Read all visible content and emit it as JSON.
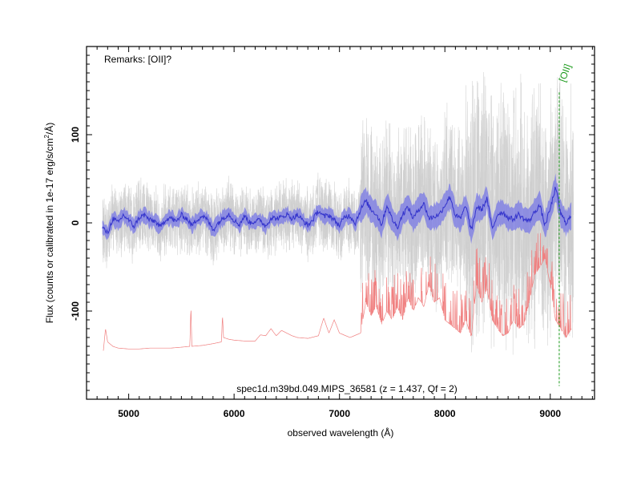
{
  "chart_data": {
    "type": "line",
    "xlabel": "observed wavelength (Å)",
    "ylabel_parts": [
      "Flux (counts or calibrated in 1e-17 erg/s/cm",
      "2",
      "/Å)"
    ],
    "remarks": "Remarks: [OII]?",
    "caption": "spec1d.m39bd.049.MIPS_36581 (z = 1.437, Qf = 2)",
    "xlim": [
      4600,
      9420
    ],
    "ylim": [
      -200,
      200
    ],
    "x_ticks": [
      5000,
      6000,
      7000,
      8000,
      9000
    ],
    "x_tick_labels": [
      "5000",
      "6000",
      "7000",
      "8000",
      "9000"
    ],
    "y_ticks": [
      -100,
      0,
      100
    ],
    "y_tick_labels": [
      "-100",
      "0",
      "100"
    ],
    "line_marker": {
      "label": "[OII]",
      "x": 9085,
      "color": "#1a9a1a"
    },
    "colors": {
      "raw": "#cccccc",
      "smoothed": "#3333cc",
      "error_band": "#7777e6",
      "sky": "#f08080"
    },
    "series": [
      {
        "role": "smoothed-flux",
        "x": [
          4750,
          4800,
          4850,
          4900,
          4950,
          5000,
          5050,
          5100,
          5150,
          5200,
          5250,
          5300,
          5350,
          5400,
          5450,
          5500,
          5550,
          5600,
          5650,
          5700,
          5750,
          5800,
          5850,
          5900,
          5950,
          6000,
          6050,
          6100,
          6150,
          6200,
          6250,
          6300,
          6350,
          6400,
          6450,
          6500,
          6550,
          6600,
          6650,
          6700,
          6750,
          6800,
          6850,
          6900,
          6950,
          7000,
          7050,
          7100,
          7150,
          7200,
          7250,
          7300,
          7350,
          7400,
          7450,
          7500,
          7550,
          7600,
          7650,
          7700,
          7750,
          7800,
          7850,
          7900,
          7950,
          8000,
          8050,
          8100,
          8150,
          8200,
          8250,
          8300,
          8350,
          8400,
          8450,
          8500,
          8550,
          8600,
          8650,
          8700,
          8750,
          8800,
          8850,
          8900,
          8950,
          9000,
          9050,
          9100,
          9150,
          9200
        ],
        "y": [
          -5,
          -12,
          5,
          0,
          9,
          3,
          -4,
          6,
          9,
          3,
          2,
          -5,
          4,
          6,
          1,
          9,
          5,
          -3,
          4,
          8,
          3,
          -8,
          0,
          6,
          10,
          3,
          -2,
          8,
          0,
          2,
          3,
          -4,
          6,
          5,
          6,
          10,
          5,
          9,
          3,
          -3,
          4,
          14,
          7,
          9,
          3,
          -3,
          7,
          8,
          0,
          15,
          25,
          15,
          10,
          -2,
          20,
          4,
          -5,
          10,
          18,
          5,
          15,
          22,
          5,
          7,
          10,
          20,
          30,
          8,
          5,
          20,
          -10,
          18,
          15,
          28,
          -8,
          10,
          12,
          6,
          4,
          10,
          4,
          2,
          12,
          20,
          -3,
          16,
          40,
          10,
          0,
          8
        ]
      },
      {
        "role": "sky-spectrum",
        "x": [
          4760,
          4780,
          4800,
          4850,
          4900,
          5000,
          5100,
          5200,
          5300,
          5400,
          5500,
          5580,
          5590,
          5600,
          5700,
          5800,
          5880,
          5890,
          5900,
          5950,
          6000,
          6100,
          6200,
          6250,
          6300,
          6350,
          6400,
          6450,
          6500,
          6550,
          6600,
          6700,
          6800,
          6850,
          6900,
          6950,
          7000,
          7100,
          7200,
          7250,
          7300,
          7350,
          7400,
          7450,
          7500,
          7550,
          7600,
          7650,
          7700,
          7750,
          7800,
          7850,
          7900,
          7950,
          8000,
          8050,
          8100,
          8150,
          8200,
          8250,
          8300,
          8350,
          8400,
          8450,
          8500,
          8550,
          8600,
          8650,
          8700,
          8750,
          8800,
          8850,
          8900,
          8950,
          9000,
          9050,
          9100,
          9150,
          9200
        ],
        "y": [
          -145,
          -120,
          -135,
          -140,
          -142,
          -143,
          -143,
          -142,
          -142,
          -142,
          -141,
          -140,
          -95,
          -140,
          -139,
          -137,
          -135,
          -105,
          -130,
          -132,
          -133,
          -134,
          -134,
          -127,
          -128,
          -120,
          -128,
          -122,
          -125,
          -128,
          -130,
          -131,
          -128,
          -108,
          -125,
          -110,
          -125,
          -130,
          -125,
          -90,
          -105,
          -95,
          -115,
          -100,
          -110,
          -95,
          -110,
          -85,
          -100,
          -85,
          -95,
          -70,
          -90,
          -85,
          -110,
          -115,
          -120,
          -125,
          -110,
          -130,
          -70,
          -90,
          -75,
          -110,
          -120,
          -128,
          -125,
          -110,
          -120,
          -115,
          -90,
          -60,
          -50,
          -40,
          -70,
          -110,
          -120,
          -130,
          -120
        ]
      }
    ]
  }
}
